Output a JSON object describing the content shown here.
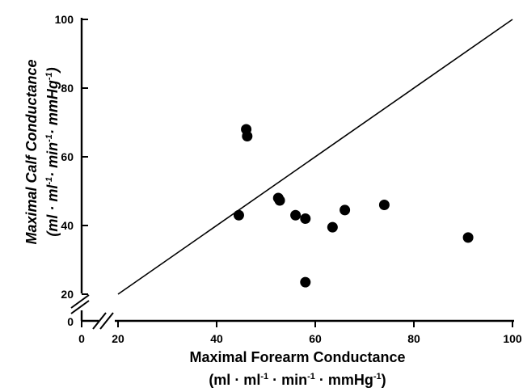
{
  "chart_data": {
    "type": "scatter",
    "title": "",
    "xlabel": "Maximal Forearm Conductance",
    "xlabel_units": [
      "(ml · ml",
      "-1",
      " · min",
      "-1",
      " · mmHg",
      "-1",
      ")"
    ],
    "ylabel": "Maximal Calf Conductance",
    "ylabel_units": [
      "(ml · ml",
      "-1",
      "· min",
      "-1",
      "· mmHg",
      "-1",
      ")"
    ],
    "xlim": [
      20,
      100
    ],
    "ylim": [
      20,
      100
    ],
    "x_ticks": [
      "0",
      "20",
      "40",
      "60",
      "80",
      "100"
    ],
    "y_ticks": [
      "0",
      "20",
      "40",
      "60",
      "80",
      "100"
    ],
    "axis_breaks": true,
    "grid": false,
    "identity_line": {
      "from": [
        20,
        20
      ],
      "to": [
        100,
        100
      ]
    },
    "points": [
      {
        "x": 44.5,
        "y": 43
      },
      {
        "x": 46,
        "y": 68
      },
      {
        "x": 46.2,
        "y": 66
      },
      {
        "x": 52.5,
        "y": 48
      },
      {
        "x": 52.8,
        "y": 47.3
      },
      {
        "x": 56,
        "y": 43
      },
      {
        "x": 58,
        "y": 42
      },
      {
        "x": 58,
        "y": 23.5
      },
      {
        "x": 63.5,
        "y": 39.5
      },
      {
        "x": 66,
        "y": 44.5
      },
      {
        "x": 74,
        "y": 46
      },
      {
        "x": 91,
        "y": 36.5
      }
    ],
    "colors": {
      "marker": "#000000",
      "line": "#000000"
    }
  }
}
